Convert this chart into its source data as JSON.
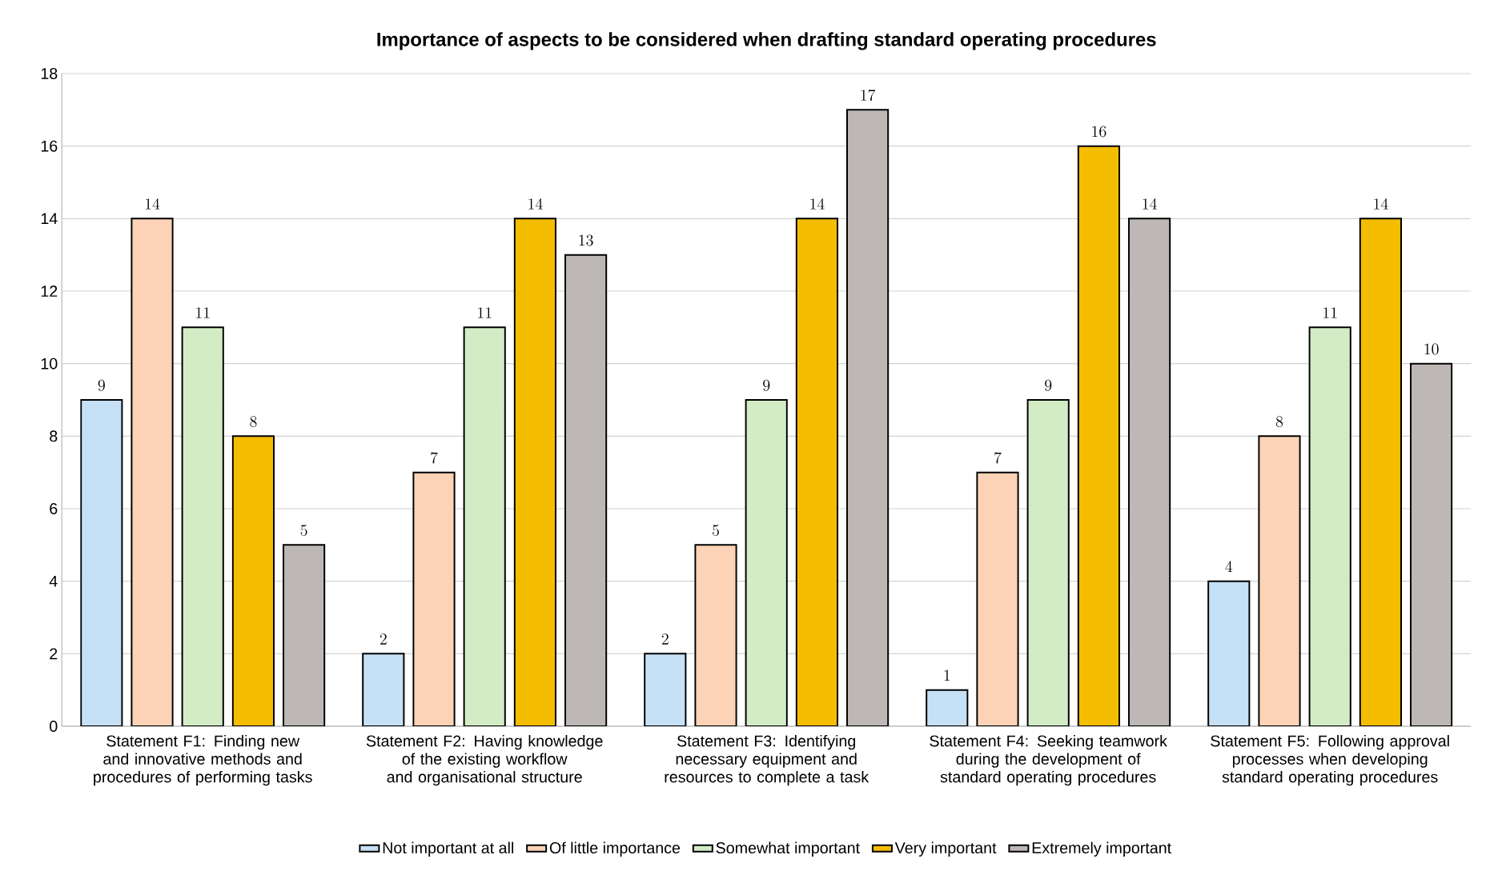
{
  "chart_data": {
    "type": "bar",
    "title": "Importance of aspects to be considered when drafting standard operating procedures",
    "categories": [
      "Statement F1: Finding new and innovative methods and procedures of performing tasks",
      "Statement F2: Having knowledge of the existing workflow and organisational structure",
      "Statement F3: Identifying necessary equipment and resources to complete a task",
      "Statement F4: Seeking teamwork during the development of standard operating procedures",
      "Statement F5: Following approval processes when developing standard operating procedures"
    ],
    "series": [
      {
        "name": "Not important at all",
        "color": "#c6e0f6",
        "values": [
          9,
          2,
          2,
          1,
          4
        ]
      },
      {
        "name": "Of little importance",
        "color": "#fcd3b6",
        "values": [
          14,
          7,
          5,
          7,
          8
        ]
      },
      {
        "name": "Somewhat important",
        "color": "#d4ecc6",
        "values": [
          11,
          11,
          9,
          9,
          11
        ]
      },
      {
        "name": "Very important",
        "color": "#f5bd00",
        "values": [
          8,
          14,
          14,
          16,
          14
        ]
      },
      {
        "name": "Extremely important",
        "color": "#bdb7b5",
        "values": [
          5,
          13,
          17,
          14,
          10
        ]
      }
    ],
    "ylim": [
      0,
      18
    ],
    "yticks": [
      0,
      2,
      4,
      6,
      8,
      10,
      12,
      14,
      16,
      18
    ],
    "grid": "y",
    "legend": "bottom",
    "data_labels": true
  }
}
